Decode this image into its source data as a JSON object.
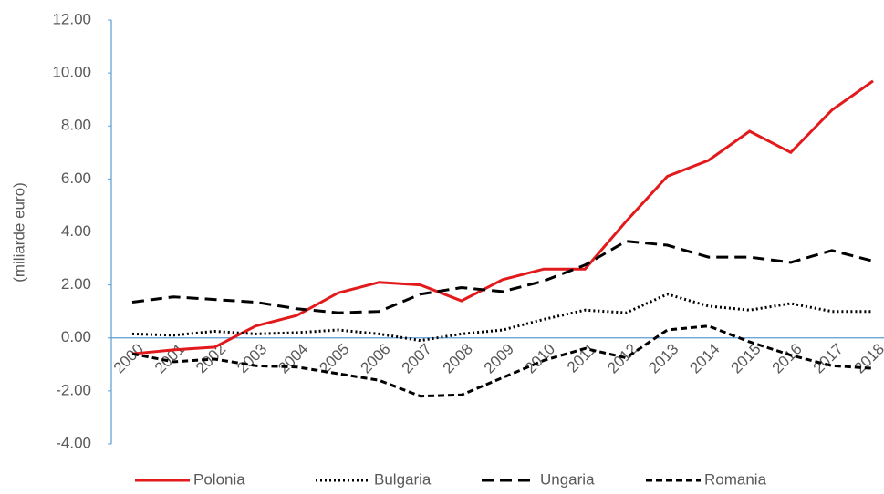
{
  "chart_data": {
    "type": "line",
    "y_label": "(miliarde euro)",
    "categories": [
      "2000",
      "2001",
      "2002",
      "2003",
      "2004",
      "2005",
      "2006",
      "2007",
      "2008",
      "2009",
      "2010",
      "2011",
      "2012",
      "2013",
      "2014",
      "2015",
      "2016",
      "2017",
      "2018"
    ],
    "series": [
      {
        "name": "Polonia",
        "color": "#e31a1c",
        "dash": "none",
        "values": [
          -0.6,
          -0.45,
          -0.35,
          0.45,
          0.85,
          1.7,
          2.1,
          2.0,
          1.4,
          2.2,
          2.6,
          2.6,
          4.4,
          6.1,
          6.7,
          7.8,
          7.0,
          8.6,
          9.7
        ]
      },
      {
        "name": "Bulgaria",
        "color": "#000000",
        "dash": "2,3",
        "values": [
          0.15,
          0.1,
          0.25,
          0.15,
          0.2,
          0.3,
          0.15,
          -0.1,
          0.15,
          0.3,
          0.7,
          1.05,
          0.95,
          1.65,
          1.2,
          1.05,
          1.3,
          1.0,
          1.0
        ]
      },
      {
        "name": "Ungaria",
        "color": "#000000",
        "dash": "13,7",
        "values": [
          1.35,
          1.55,
          1.45,
          1.35,
          1.1,
          0.95,
          1.0,
          1.65,
          1.9,
          1.75,
          2.15,
          2.75,
          3.65,
          3.5,
          3.05,
          3.05,
          2.85,
          3.3,
          2.9
        ]
      },
      {
        "name": "Romania",
        "color": "#000000",
        "dash": "7,4",
        "values": [
          -0.6,
          -0.9,
          -0.8,
          -1.05,
          -1.1,
          -1.35,
          -1.6,
          -2.2,
          -2.15,
          -1.5,
          -0.85,
          -0.4,
          -0.75,
          0.3,
          0.45,
          -0.15,
          -0.65,
          -1.05,
          -1.15
        ]
      }
    ],
    "ylim": [
      -4,
      12
    ],
    "yticks": [
      {
        "value": -4,
        "label": "-4.00"
      },
      {
        "value": -2,
        "label": "-2.00"
      },
      {
        "value": 0,
        "label": "0.00"
      },
      {
        "value": 2,
        "label": "2.00"
      },
      {
        "value": 4,
        "label": "4.00"
      },
      {
        "value": 6,
        "label": "6.00"
      },
      {
        "value": 8,
        "label": "8.00"
      },
      {
        "value": 10,
        "label": "10.00"
      },
      {
        "value": 12,
        "label": "12.00"
      }
    ],
    "grid": false,
    "legend": "bottom"
  }
}
